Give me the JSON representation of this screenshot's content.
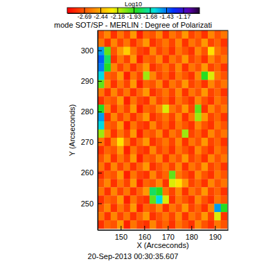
{
  "chart_data": {
    "type": "heatmap",
    "title": "mode SOT/SP - MERLIN : Degree of Polarizati",
    "x_label": "X (Arcseconds)",
    "y_label": "Y (Arcseconds)",
    "annotation": "20-Sep-2013 00:30:35.607",
    "xlim": [
      140.2,
      195.5
    ],
    "ylim": [
      241.3,
      306.5
    ],
    "xticks": [
      150,
      160,
      170,
      180,
      190
    ],
    "yticks": [
      250,
      260,
      270,
      280,
      290,
      300
    ],
    "colorbar": {
      "label": "Log10",
      "range": [
        -2.95,
        -0.92
      ],
      "ticks": [
        -2.69,
        -2.44,
        -2.18,
        -1.93,
        -1.68,
        -1.43,
        -1.17
      ]
    },
    "x": [
      141.6,
      144.35,
      147.1,
      149.85,
      152.6,
      155.35,
      158.1,
      160.85,
      163.6,
      166.35,
      169.1,
      171.85,
      174.6,
      177.35,
      180.1,
      182.85,
      185.6,
      188.35,
      191.1,
      193.85
    ],
    "y": [
      305.2,
      302.5,
      299.8,
      297.1,
      294.4,
      291.7,
      289.0,
      286.3,
      283.6,
      280.9,
      278.2,
      275.5,
      272.8,
      270.1,
      267.4,
      264.7,
      262.0,
      259.3,
      256.6,
      253.9,
      251.2,
      248.5,
      245.8,
      243.1
    ],
    "z": [
      [
        -2.7,
        -2.55,
        -2.8,
        -2.6,
        -2.75,
        -2.5,
        -2.85,
        -2.65,
        -2.7,
        -2.55,
        -2.8,
        -2.6,
        -2.7,
        -2.5,
        -2.75,
        -2.65,
        -2.8,
        -2.55,
        -2.7,
        -2.6
      ],
      [
        -2.6,
        -2.8,
        -2.55,
        -2.75,
        -2.6,
        -2.8,
        -2.65,
        -2.5,
        -2.8,
        -2.7,
        -2.6,
        -2.75,
        -2.55,
        -2.8,
        -2.6,
        -2.7,
        -2.5,
        -2.75,
        -2.65,
        -2.8
      ],
      [
        -1.5,
        -2.0,
        -2.7,
        -2.5,
        -2.35,
        -2.6,
        -2.75,
        -2.8,
        -2.55,
        -2.75,
        -2.65,
        -2.8,
        -2.6,
        -2.7,
        -2.8,
        -2.55,
        -2.7,
        -2.3,
        -2.6,
        -2.7
      ],
      [
        -1.4,
        -1.8,
        -2.8,
        -2.6,
        -2.75,
        -2.5,
        -2.85,
        -2.65,
        -2.7,
        -2.55,
        -2.8,
        -2.6,
        -2.7,
        -2.5,
        -2.75,
        -2.65,
        -2.8,
        -2.55,
        -2.7,
        -2.6
      ],
      [
        -1.45,
        -1.9,
        -2.55,
        -2.75,
        -2.6,
        -2.8,
        -2.65,
        -2.5,
        -2.8,
        -2.7,
        -2.6,
        -2.75,
        -2.55,
        -2.8,
        -2.6,
        -2.7,
        -2.5,
        -2.75,
        -2.65,
        -2.8
      ],
      [
        -1.6,
        -2.65,
        -2.7,
        -2.5,
        -2.85,
        -2.6,
        -2.75,
        -2.1,
        -2.55,
        -2.75,
        -2.65,
        -2.8,
        -2.6,
        -2.7,
        -2.8,
        -2.55,
        -1.9,
        -2.2,
        -2.6,
        -2.7
      ],
      [
        -2.0,
        -2.55,
        -2.8,
        -2.6,
        -2.75,
        -2.5,
        -2.85,
        -2.65,
        -2.7,
        -2.55,
        -2.8,
        -2.6,
        -2.7,
        -2.5,
        -2.75,
        -2.65,
        -2.8,
        -2.55,
        -2.7,
        -2.6
      ],
      [
        -2.6,
        -2.8,
        -2.55,
        -2.75,
        -2.6,
        -2.8,
        -2.65,
        -2.5,
        -2.8,
        -2.7,
        -2.6,
        -2.75,
        -2.55,
        -2.8,
        -2.6,
        -2.7,
        -2.5,
        -2.75,
        -2.65,
        -2.8
      ],
      [
        -2.8,
        -2.65,
        -2.7,
        -2.5,
        -2.85,
        -2.6,
        -2.75,
        -2.8,
        -2.55,
        -2.75,
        -2.65,
        -2.8,
        -2.6,
        -2.7,
        -2.8,
        -2.55,
        -2.7,
        -2.8,
        -2.6,
        -2.7
      ],
      [
        -1.9,
        -2.55,
        -2.8,
        -2.6,
        -2.75,
        -2.5,
        -2.85,
        -2.65,
        -2.7,
        -2.55,
        -2.2,
        -2.6,
        -2.7,
        -2.5,
        -2.75,
        -2.0,
        -2.8,
        -2.55,
        -2.7,
        -2.6
      ],
      [
        -1.5,
        -2.8,
        -2.55,
        -2.75,
        -2.6,
        -2.8,
        -2.65,
        -2.5,
        -2.8,
        -2.7,
        -2.6,
        -2.75,
        -2.55,
        -2.8,
        -2.6,
        -2.1,
        -2.5,
        -2.75,
        -2.65,
        -2.8
      ],
      [
        -1.6,
        -2.65,
        -2.7,
        -2.5,
        -2.85,
        -2.6,
        -2.75,
        -2.8,
        -2.55,
        -2.75,
        -2.65,
        -2.8,
        -2.6,
        -2.7,
        -2.8,
        -2.55,
        -2.7,
        -2.8,
        -2.6,
        -2.7
      ],
      [
        -2.1,
        -2.55,
        -2.8,
        -2.6,
        -2.75,
        -2.5,
        -2.85,
        -2.65,
        -2.7,
        -2.55,
        -2.8,
        -2.6,
        -2.7,
        -2.1,
        -2.75,
        -2.65,
        -2.8,
        -2.55,
        -2.7,
        -2.6
      ],
      [
        -2.6,
        -2.8,
        -2.55,
        -2.3,
        -2.6,
        -2.8,
        -2.65,
        -2.5,
        -2.8,
        -2.7,
        -2.6,
        -2.75,
        -2.55,
        -2.8,
        -2.6,
        -2.7,
        -2.5,
        -2.75,
        -2.65,
        -2.8
      ],
      [
        -2.8,
        -2.65,
        -2.7,
        -2.5,
        -2.85,
        -2.6,
        -2.75,
        -2.8,
        -2.55,
        -2.75,
        -2.65,
        -2.8,
        -2.6,
        -2.7,
        -2.8,
        -2.55,
        -2.7,
        -2.8,
        -2.6,
        -2.7
      ],
      [
        -2.7,
        -2.55,
        -2.8,
        -2.6,
        -2.75,
        -2.5,
        -2.85,
        -2.65,
        -2.7,
        -2.55,
        -2.8,
        -2.6,
        -2.7,
        -2.5,
        -2.75,
        -2.65,
        -2.8,
        -2.55,
        -2.7,
        -2.6
      ],
      [
        -2.6,
        -2.8,
        -2.55,
        -2.75,
        -2.6,
        -2.8,
        -2.65,
        -2.5,
        -2.8,
        -2.7,
        -2.6,
        -2.75,
        -2.55,
        -2.8,
        -2.6,
        -2.7,
        -2.5,
        -2.75,
        -2.65,
        -2.8
      ],
      [
        -2.8,
        -2.65,
        -2.7,
        -2.5,
        -2.85,
        -2.6,
        -2.75,
        -2.8,
        -2.55,
        -2.75,
        -2.65,
        -2.0,
        -2.6,
        -2.7,
        -2.8,
        -2.55,
        -2.7,
        -2.8,
        -2.6,
        -2.7
      ],
      [
        -2.7,
        -2.55,
        -2.8,
        -2.6,
        -2.75,
        -2.5,
        -2.85,
        -2.65,
        -2.7,
        -2.55,
        -2.8,
        -2.2,
        -2.3,
        -2.5,
        -2.75,
        -2.65,
        -2.8,
        -2.55,
        -2.7,
        -2.6
      ],
      [
        -2.6,
        -2.8,
        -2.55,
        -2.75,
        -2.6,
        -2.8,
        -2.65,
        -2.5,
        -1.8,
        -1.9,
        -2.6,
        -2.75,
        -2.55,
        -2.8,
        -2.6,
        -2.7,
        -2.5,
        -2.75,
        -2.65,
        -2.8
      ],
      [
        -2.8,
        -2.65,
        -2.7,
        -2.5,
        -2.85,
        -2.6,
        -2.75,
        -2.8,
        -2.0,
        -1.6,
        -2.2,
        -2.8,
        -2.6,
        -2.7,
        -2.8,
        -2.55,
        -2.7,
        -2.8,
        -2.6,
        -2.7
      ],
      [
        -2.7,
        -2.55,
        -2.8,
        -2.6,
        -2.75,
        -2.5,
        -2.85,
        -2.65,
        -2.7,
        -2.55,
        -2.8,
        -2.6,
        -2.7,
        -2.5,
        -2.75,
        -2.65,
        -2.8,
        -2.55,
        -1.5,
        -1.9
      ],
      [
        -2.6,
        -2.8,
        -2.55,
        -2.75,
        -2.6,
        -2.8,
        -2.65,
        -2.5,
        -2.8,
        -2.7,
        -2.6,
        -2.75,
        -2.55,
        -2.8,
        -2.6,
        -2.7,
        -2.5,
        -2.75,
        -2.2,
        -2.8
      ],
      [
        -2.8,
        -2.65,
        -2.7,
        -2.5,
        -2.85,
        -2.6,
        -2.75,
        -2.8,
        -2.55,
        -2.75,
        -2.65,
        -2.8,
        -2.6,
        -2.7,
        -2.8,
        -2.55,
        -2.7,
        -2.8,
        -2.6,
        -2.7
      ]
    ]
  }
}
